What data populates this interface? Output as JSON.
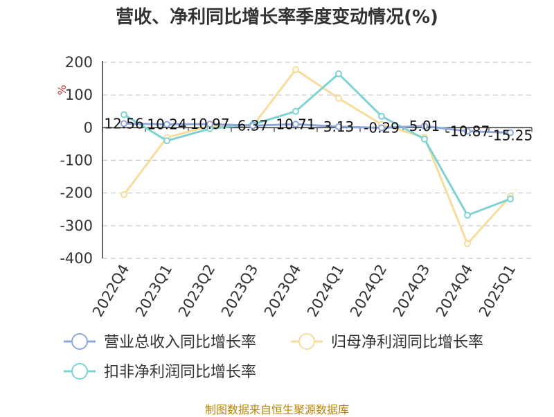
{
  "chart_data": {
    "type": "line",
    "title": "营收、净利同比增长率季度变动情况(%)",
    "ylabel": "%",
    "categories": [
      "2022Q4",
      "2023Q1",
      "2023Q2",
      "2023Q3",
      "2023Q4",
      "2024Q1",
      "2024Q2",
      "2024Q3",
      "2024Q4",
      "2025Q1"
    ],
    "yticks": [
      200,
      100,
      0,
      -100,
      -200,
      -300,
      -400
    ],
    "ylim": [
      -400,
      200
    ],
    "grid": true,
    "legend_position": "bottom",
    "series": [
      {
        "name": "营业总收入同比增长率",
        "color": "#8fa8dc",
        "values": [
          12.56,
          10.24,
          10.97,
          6.37,
          10.71,
          3.13,
          -0.29,
          5.01,
          -10.87,
          -15.25
        ],
        "labels": [
          "12.56",
          "10.24",
          "10.97",
          "6.37",
          "10.71",
          "3.13",
          "-0.29",
          "5.01",
          "-10.87",
          "-15.25"
        ]
      },
      {
        "name": "归母净利润同比增长率",
        "color": "#f7dc9c",
        "values": [
          -205,
          -30,
          5,
          5,
          178,
          90,
          10,
          -30,
          -355,
          -210
        ]
      },
      {
        "name": "扣非净利润同比增长率",
        "color": "#7fd2d2",
        "values": [
          40,
          -40,
          -3,
          10,
          50,
          165,
          35,
          -35,
          -268,
          -218
        ]
      }
    ]
  },
  "source": "制图数据来自恒生聚源数据库"
}
